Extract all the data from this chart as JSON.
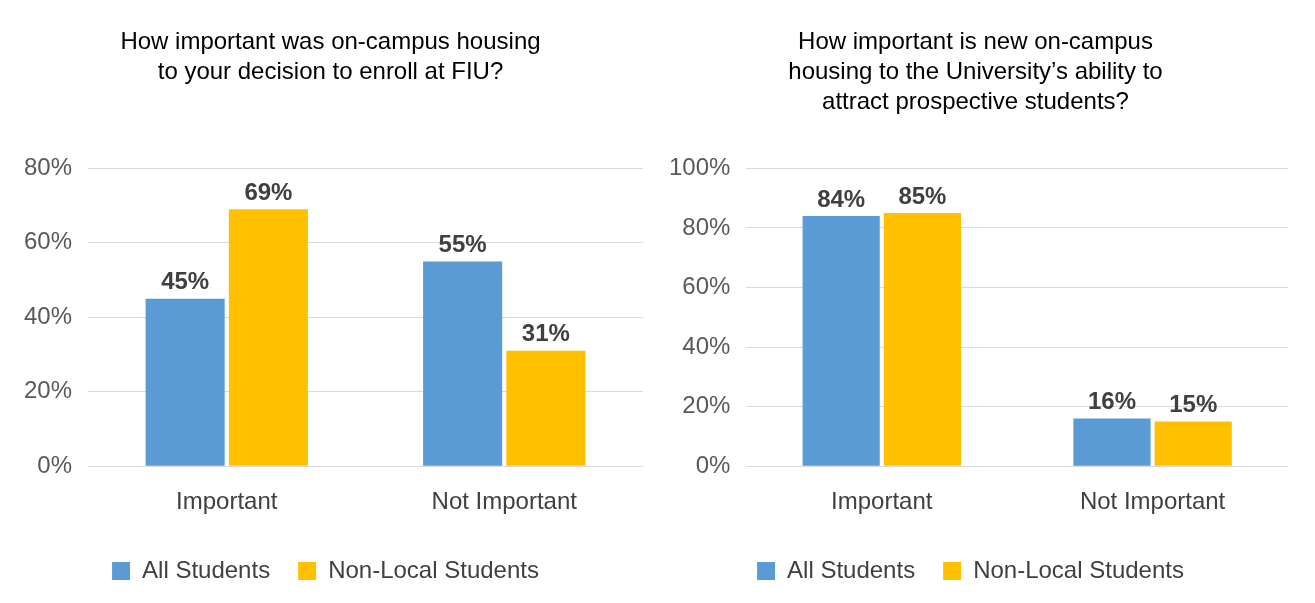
{
  "chart_data": [
    {
      "type": "bar",
      "title": "How important was on-campus housing to your decision to enroll at FIU?",
      "categories": [
        "Important",
        "Not Important"
      ],
      "series": [
        {
          "name": "All Students",
          "color": "#5b9bd5",
          "values": [
            45,
            55
          ],
          "value_labels": [
            "45%",
            "55%"
          ]
        },
        {
          "name": "Non-Local Students",
          "color": "#ffc000",
          "values": [
            69,
            31
          ],
          "value_labels": [
            "69%",
            "31%"
          ]
        }
      ],
      "ylim": [
        0,
        80
      ],
      "yticks": [
        {
          "value": 0,
          "label": "0%"
        },
        {
          "value": 20,
          "label": "20%"
        },
        {
          "value": 40,
          "label": "40%"
        },
        {
          "value": 60,
          "label": "60%"
        },
        {
          "value": 80,
          "label": "80%"
        }
      ],
      "grid": "y",
      "legend": "bottom"
    },
    {
      "type": "bar",
      "title": "How important is new on-campus housing to the University’s ability to attract prospective students?",
      "categories": [
        "Important",
        "Not Important"
      ],
      "series": [
        {
          "name": "All Students",
          "color": "#5b9bd5",
          "values": [
            84,
            16
          ],
          "value_labels": [
            "84%",
            "16%"
          ]
        },
        {
          "name": "Non-Local Students",
          "color": "#ffc000",
          "values": [
            85,
            15
          ],
          "value_labels": [
            "85%",
            "15%"
          ]
        }
      ],
      "ylim": [
        0,
        100
      ],
      "yticks": [
        {
          "value": 0,
          "label": "0%"
        },
        {
          "value": 20,
          "label": "20%"
        },
        {
          "value": 40,
          "label": "40%"
        },
        {
          "value": 60,
          "label": "60%"
        },
        {
          "value": 80,
          "label": "80%"
        },
        {
          "value": 100,
          "label": "100%"
        }
      ],
      "grid": "y",
      "legend": "bottom"
    }
  ]
}
